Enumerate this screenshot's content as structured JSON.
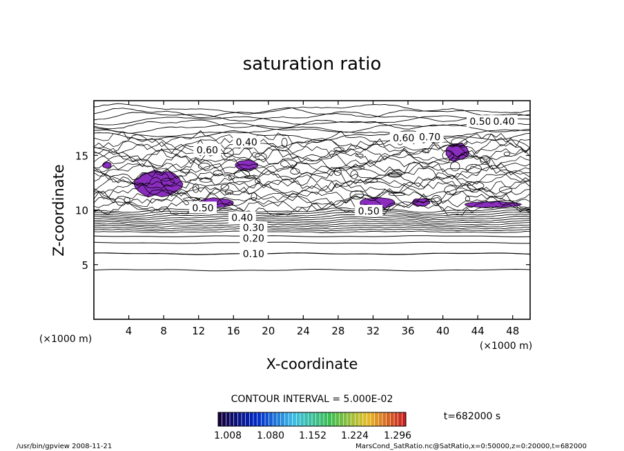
{
  "chart_data": {
    "type": "contour",
    "title": "saturation ratio",
    "xlabel": "X-coordinate",
    "ylabel": "Z-coordinate",
    "x_unit": "(×1000 m)",
    "x_unit_left": "(×1000 m)",
    "xlim": [
      0,
      50
    ],
    "ylim": [
      0,
      20
    ],
    "xticks": [
      "4",
      "8",
      "12",
      "16",
      "20",
      "24",
      "28",
      "32",
      "36",
      "40",
      "44",
      "48"
    ],
    "yticks": [
      "5",
      "10",
      "15"
    ],
    "xtick_values": [
      4,
      8,
      12,
      16,
      20,
      24,
      28,
      32,
      36,
      40,
      44,
      48
    ],
    "ytick_values": [
      5,
      10,
      15
    ],
    "contour_interval": "CONTOUR INTERVAL = 5.000E-02",
    "time_label": "t=682000 s",
    "contour_labels": [
      {
        "text": "0.10",
        "x": 18.3,
        "z": 6.0
      },
      {
        "text": "0.20",
        "x": 18.3,
        "z": 7.4
      },
      {
        "text": "0.30",
        "x": 18.3,
        "z": 8.4
      },
      {
        "text": "0.40",
        "x": 17.0,
        "z": 9.3
      },
      {
        "text": "0.40",
        "x": 17.5,
        "z": 16.2
      },
      {
        "text": "0.60",
        "x": 13.0,
        "z": 15.5
      },
      {
        "text": "0.60",
        "x": 35.5,
        "z": 16.6
      },
      {
        "text": "0.70",
        "x": 38.5,
        "z": 16.7
      },
      {
        "text": "0.50",
        "x": 44.3,
        "z": 18.1
      },
      {
        "text": "0.40",
        "x": 47.0,
        "z": 18.1
      },
      {
        "text": "0.50",
        "x": 12.5,
        "z": 10.2
      },
      {
        "text": "0.50",
        "x": 31.5,
        "z": 9.9
      }
    ],
    "supersaturated_regions": [
      {
        "x": [
          4.6,
          10.2
        ],
        "z": [
          11.1,
          13.7
        ]
      },
      {
        "x": [
          16.2,
          18.8
        ],
        "z": [
          13.6,
          14.6
        ]
      },
      {
        "x": [
          12.0,
          16.0
        ],
        "z": [
          10.2,
          11.1
        ]
      },
      {
        "x": [
          30.5,
          34.5
        ],
        "z": [
          10.1,
          11.2
        ]
      },
      {
        "x": [
          36.5,
          38.5
        ],
        "z": [
          10.3,
          11.1
        ]
      },
      {
        "x": [
          40.3,
          43.0
        ],
        "z": [
          14.4,
          16.2
        ]
      },
      {
        "x": [
          42.5,
          49.0
        ],
        "z": [
          10.2,
          10.8
        ]
      },
      {
        "x": [
          1.0,
          2.0
        ],
        "z": [
          13.8,
          14.4
        ]
      }
    ],
    "region_color": "#8a2dbf",
    "colorbar": {
      "ticks": [
        "1.008",
        "1.080",
        "1.152",
        "1.224",
        "1.296"
      ],
      "min": 1.008,
      "max": 1.296
    },
    "footer_left": "/usr/bin/gpview  2008-11-21",
    "footer_right": "MarsCond_SatRatio.nc@SatRatio,x=0:50000,z=0:20000,t=682000"
  }
}
